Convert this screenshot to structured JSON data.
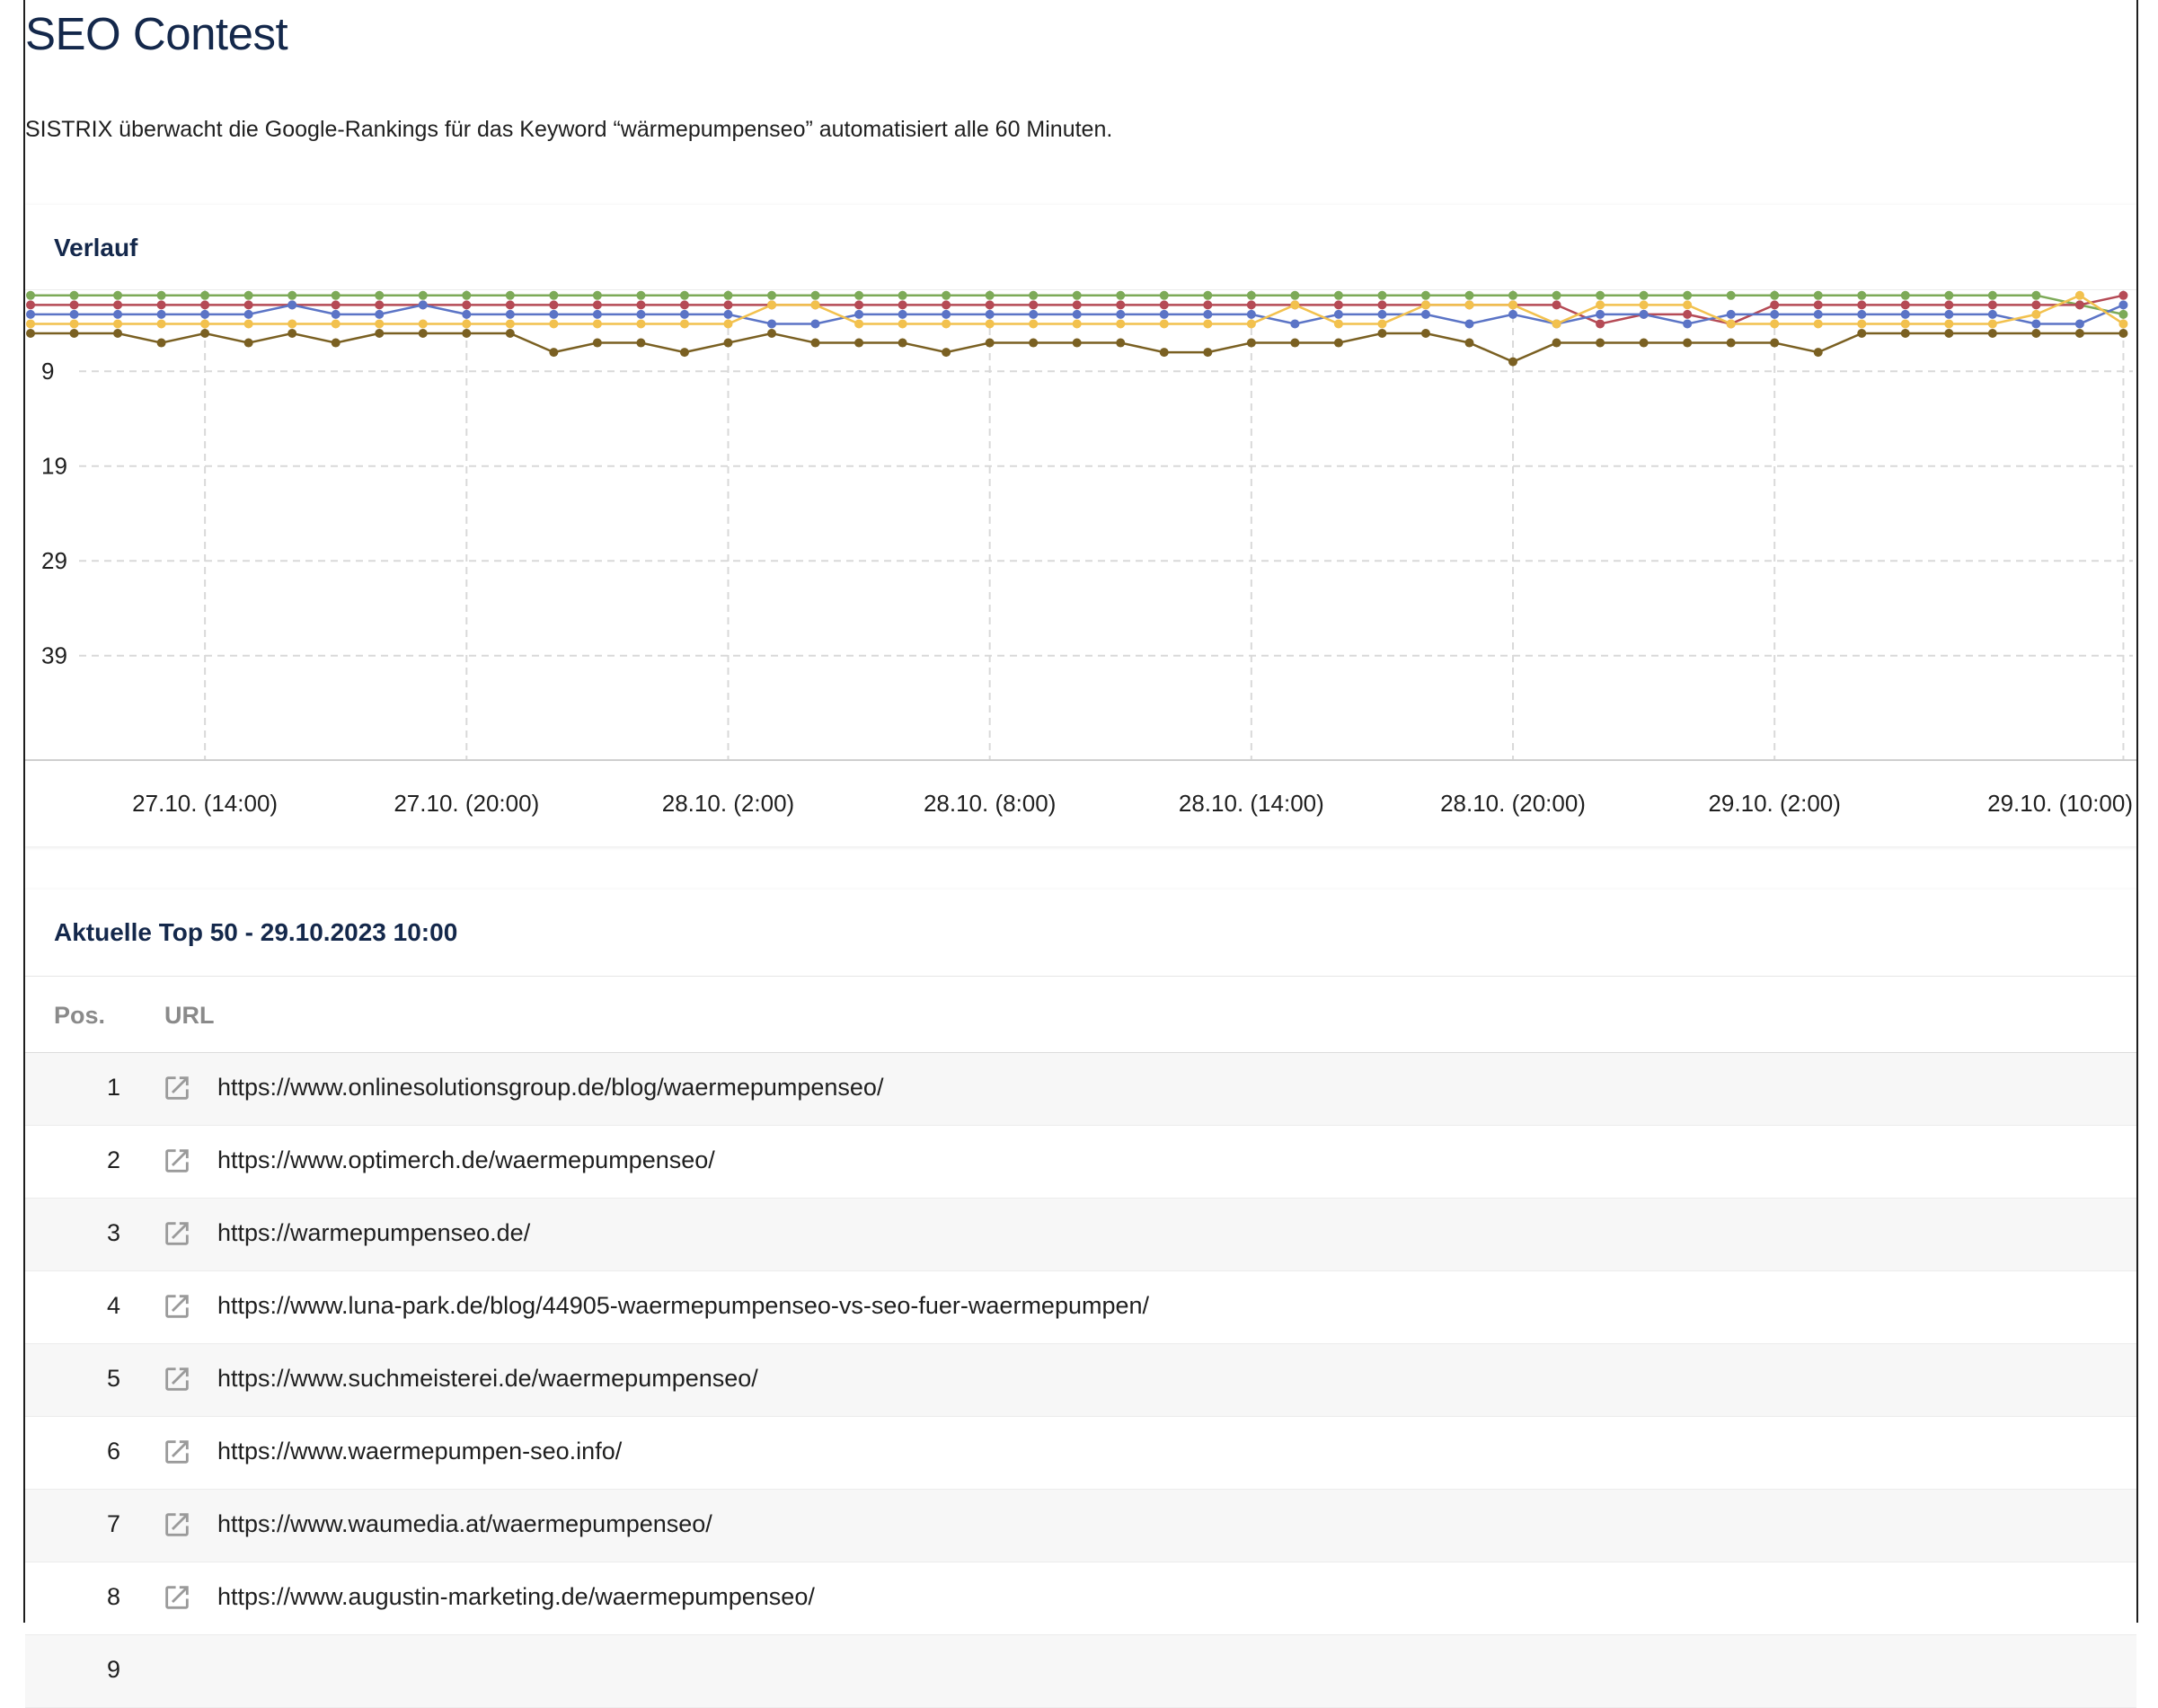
{
  "page": {
    "title": "SEO Contest",
    "intro": "SISTRIX überwacht die Google-Rankings für das Keyword “wärmepumpenseo” automatisiert alle 60 Minuten."
  },
  "chart_section": {
    "title": "Verlauf"
  },
  "chart_data": {
    "type": "line",
    "title": "Verlauf",
    "y_inverted": true,
    "ylim": [
      1,
      49
    ],
    "y_ticks": [
      9,
      19,
      29,
      39
    ],
    "x_tick_labels": [
      "27.10. (14:00)",
      "27.10. (20:00)",
      "28.10. (2:00)",
      "28.10. (8:00)",
      "28.10. (14:00)",
      "28.10. (20:00)",
      "29.10. (2:00)",
      "29.10. (10:00)"
    ],
    "x_tick_hours": [
      4,
      10,
      16,
      22,
      28,
      34,
      40,
      48
    ],
    "x_start": "27.10. 10:00",
    "x_hours": [
      0,
      1,
      2,
      3,
      4,
      5,
      6,
      7,
      8,
      9,
      10,
      11,
      12,
      13,
      14,
      15,
      16,
      17,
      18,
      19,
      20,
      21,
      22,
      23,
      24,
      25,
      26,
      27,
      28,
      29,
      30,
      31,
      32,
      33,
      34,
      35,
      36,
      37,
      38,
      39,
      40,
      41,
      42,
      43,
      44,
      45,
      46,
      47,
      48
    ],
    "grid": true,
    "legend": "none",
    "series": [
      {
        "color": "#7daa58",
        "values": [
          1,
          1,
          1,
          1,
          1,
          1,
          1,
          1,
          1,
          1,
          1,
          1,
          1,
          1,
          1,
          1,
          1,
          1,
          1,
          1,
          1,
          1,
          1,
          1,
          1,
          1,
          1,
          1,
          1,
          1,
          1,
          1,
          1,
          1,
          1,
          1,
          1,
          1,
          1,
          1,
          1,
          1,
          1,
          1,
          1,
          1,
          1,
          2,
          3
        ]
      },
      {
        "color": "#b54a55",
        "values": [
          2,
          2,
          2,
          2,
          2,
          2,
          2,
          2,
          2,
          2,
          2,
          2,
          2,
          2,
          2,
          2,
          2,
          2,
          2,
          2,
          2,
          2,
          2,
          2,
          2,
          2,
          2,
          2,
          2,
          2,
          2,
          2,
          2,
          2,
          2,
          2,
          4,
          3,
          3,
          4,
          2,
          2,
          2,
          2,
          2,
          2,
          2,
          2,
          1
        ]
      },
      {
        "color": "#5b74c6",
        "values": [
          3,
          3,
          3,
          3,
          3,
          3,
          2,
          3,
          3,
          2,
          3,
          3,
          3,
          3,
          3,
          3,
          3,
          4,
          4,
          3,
          3,
          3,
          3,
          3,
          3,
          3,
          3,
          3,
          3,
          4,
          3,
          3,
          3,
          4,
          3,
          4,
          3,
          3,
          4,
          3,
          3,
          3,
          3,
          3,
          3,
          3,
          4,
          4,
          2
        ]
      },
      {
        "color": "#f2c14e",
        "values": [
          4,
          4,
          4,
          4,
          4,
          4,
          4,
          4,
          4,
          4,
          4,
          4,
          4,
          4,
          4,
          4,
          4,
          2,
          2,
          4,
          4,
          4,
          4,
          4,
          4,
          4,
          4,
          4,
          4,
          2,
          4,
          4,
          2,
          2,
          2,
          4,
          2,
          2,
          2,
          4,
          4,
          4,
          4,
          4,
          4,
          4,
          3,
          1,
          4
        ]
      },
      {
        "color": "#7a6022",
        "values": [
          5,
          5,
          5,
          6,
          5,
          6,
          5,
          6,
          5,
          5,
          5,
          5,
          7,
          6,
          6,
          7,
          6,
          5,
          6,
          6,
          6,
          7,
          6,
          6,
          6,
          6,
          7,
          7,
          6,
          6,
          6,
          5,
          5,
          6,
          8,
          6,
          6,
          6,
          6,
          6,
          6,
          7,
          5,
          5,
          5,
          5,
          5,
          5,
          5
        ]
      }
    ]
  },
  "table_section": {
    "title": "Aktuelle Top 50 - 29.10.2023 10:00",
    "col_pos": "Pos.",
    "col_url": "URL",
    "icon": "external-link-icon",
    "rows": [
      {
        "pos": "1",
        "url": "https://www.onlinesolutionsgroup.de/blog/waermepumpenseo/"
      },
      {
        "pos": "2",
        "url": "https://www.optimerch.de/waermepumpenseo/"
      },
      {
        "pos": "3",
        "url": "https://warmepumpenseo.de/"
      },
      {
        "pos": "4",
        "url": "https://www.luna-park.de/blog/44905-waermepumpenseo-vs-seo-fuer-waermepumpen/"
      },
      {
        "pos": "5",
        "url": "https://www.suchmeisterei.de/waermepumpenseo/"
      },
      {
        "pos": "6",
        "url": "https://www.waermepumpen-seo.info/"
      },
      {
        "pos": "7",
        "url": "https://www.waumedia.at/waermepumpenseo/"
      },
      {
        "pos": "8",
        "url": "https://www.augustin-marketing.de/waermepumpenseo/"
      },
      {
        "pos": "9",
        "url": ""
      }
    ]
  }
}
